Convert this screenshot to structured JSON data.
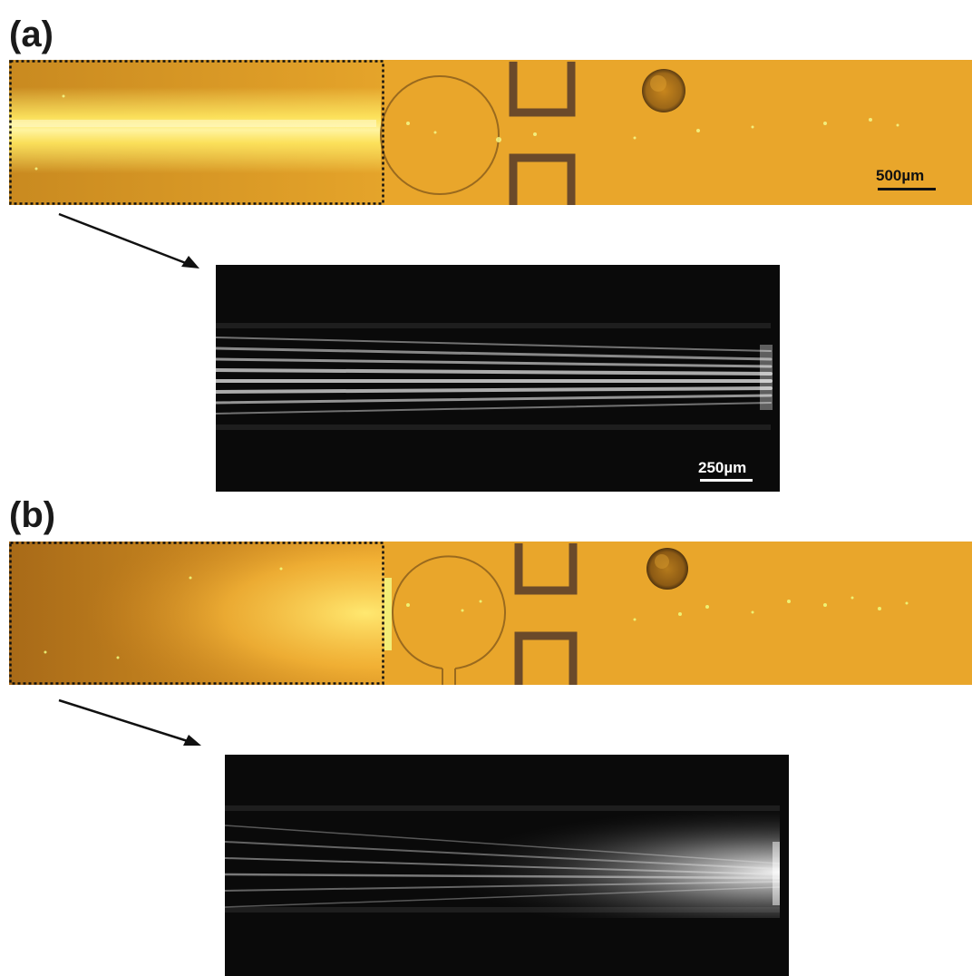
{
  "panels": {
    "a": {
      "label": "(a)",
      "strip_scalebar": "500µm",
      "inset_scalebar": "250µm"
    },
    "b": {
      "label": "(b)"
    }
  },
  "colors": {
    "channel_orange": "#e8a526",
    "channel_dark": "#b57a1a",
    "electrode": "#6b4a2a",
    "glow_yellow": "#fff07a",
    "inset_bg": "#0a0a0a",
    "inset_streak": "#f2f2f2"
  },
  "icons": [
    "zoom-arrow-icon",
    "zoom-arrow-icon"
  ]
}
